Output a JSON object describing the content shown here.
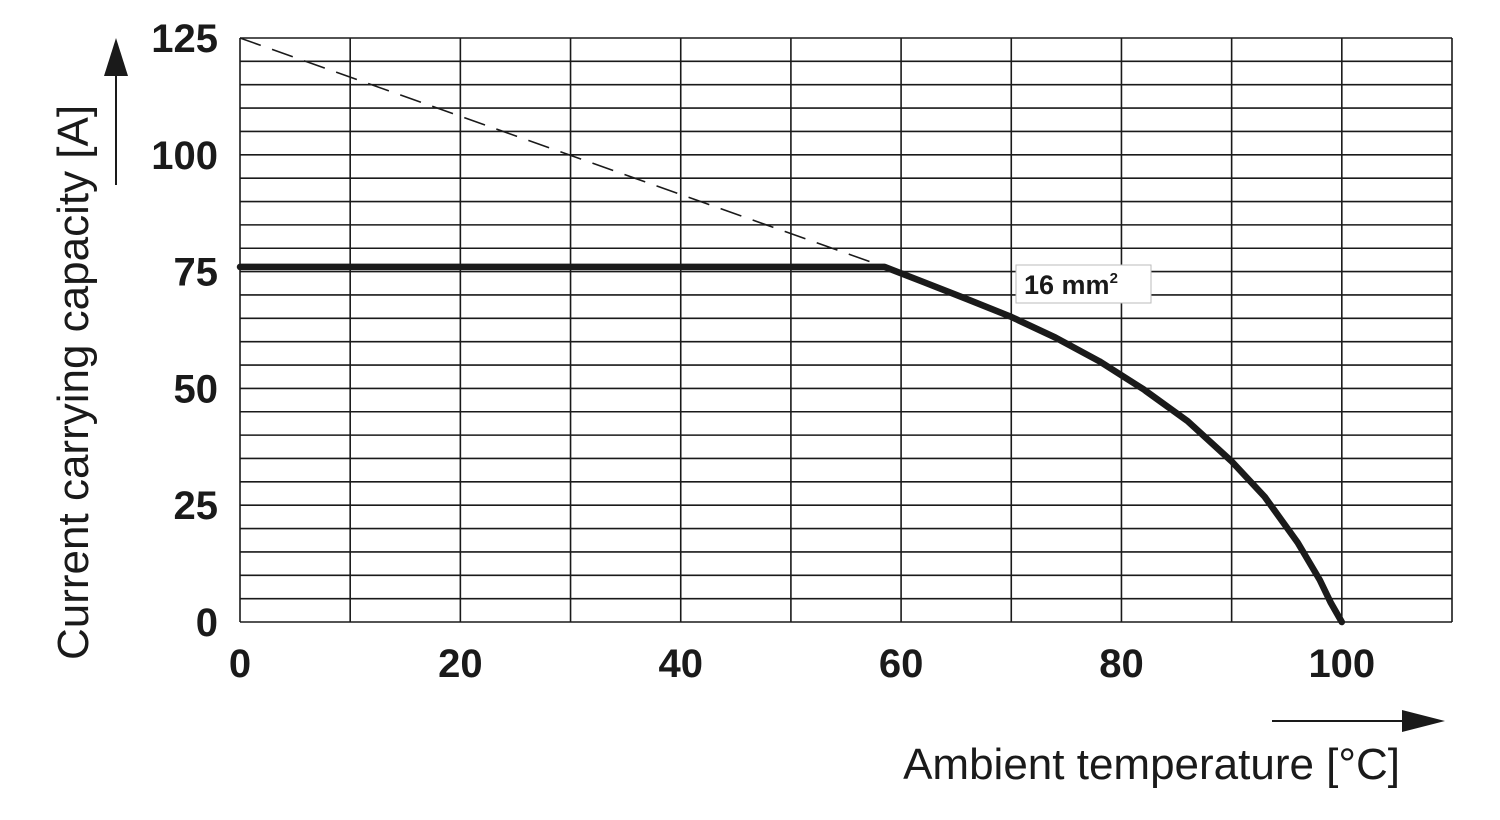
{
  "chart_data": {
    "type": "line",
    "title": "",
    "xlabel": "Ambient temperature [°C]",
    "ylabel": "Current carrying capacity [A]",
    "xlim": [
      0,
      110
    ],
    "ylim": [
      0,
      125
    ],
    "x_ticks": [
      0,
      20,
      40,
      60,
      80,
      100
    ],
    "y_ticks": [
      0,
      25,
      50,
      75,
      100,
      125
    ],
    "x_tick_labels": [
      "0",
      "20",
      "40",
      "60",
      "80",
      "100"
    ],
    "y_tick_labels": [
      "0",
      "25",
      "50",
      "75",
      "100",
      "125"
    ],
    "grid": true,
    "x_grid_step": 10,
    "y_grid_step": 5,
    "series": [
      {
        "name": "16 mm²",
        "label_main": "16 mm",
        "label_sup": "2",
        "style": "solid",
        "x": [
          0,
          58.5,
          62,
          66,
          70,
          74,
          78,
          82,
          86,
          90,
          93,
          96,
          98,
          99,
          100
        ],
        "y": [
          76,
          76,
          72.8,
          69.1,
          65.3,
          60.9,
          55.8,
          49.8,
          43.0,
          34.4,
          26.8,
          17.0,
          9.0,
          4.1,
          0
        ]
      },
      {
        "name": "",
        "style": "dashed",
        "x": [
          0,
          58.5
        ],
        "y": [
          125,
          76
        ]
      }
    ],
    "colors": {
      "line": "#1a1a1a",
      "grid": "#1a1a1a",
      "label_box_border": "#bbbbbb",
      "background": "#ffffff"
    }
  }
}
